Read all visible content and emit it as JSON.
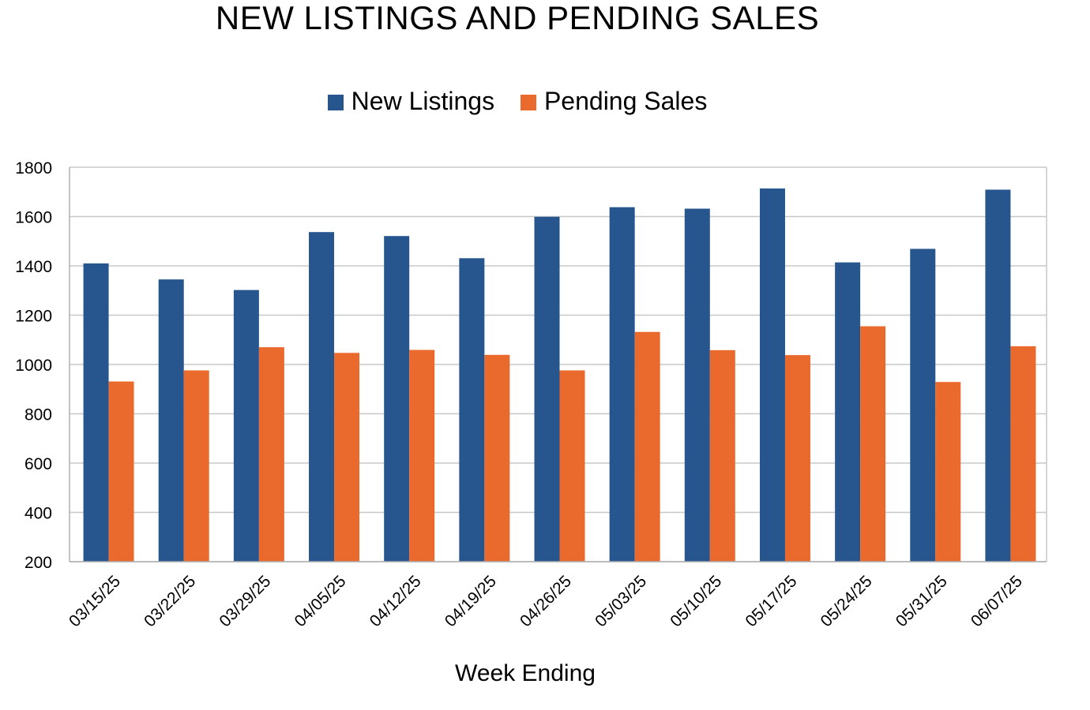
{
  "chart_data": {
    "type": "bar",
    "title": "NEW LISTINGS AND PENDING SALES",
    "xlabel": "Week Ending",
    "ylabel": "",
    "ylim": [
      200,
      1800
    ],
    "yticks": [
      200,
      400,
      600,
      800,
      1000,
      1200,
      1400,
      1600,
      1800
    ],
    "grid": true,
    "legend_position": "top",
    "categories": [
      "03/15/25",
      "03/22/25",
      "03/29/25",
      "04/05/25",
      "04/12/25",
      "04/19/25",
      "04/26/25",
      "05/03/25",
      "05/10/25",
      "05/17/25",
      "05/24/25",
      "05/31/25",
      "06/07/25"
    ],
    "series": [
      {
        "name": "New Listings",
        "color": "#27568f",
        "values": [
          1410,
          1345,
          1302,
          1537,
          1521,
          1431,
          1599,
          1638,
          1632,
          1714,
          1414,
          1469,
          1709
        ]
      },
      {
        "name": "Pending Sales",
        "color": "#ea6a2e",
        "values": [
          931,
          976,
          1070,
          1047,
          1059,
          1039,
          976,
          1132,
          1058,
          1038,
          1155,
          929,
          1074
        ]
      }
    ]
  }
}
